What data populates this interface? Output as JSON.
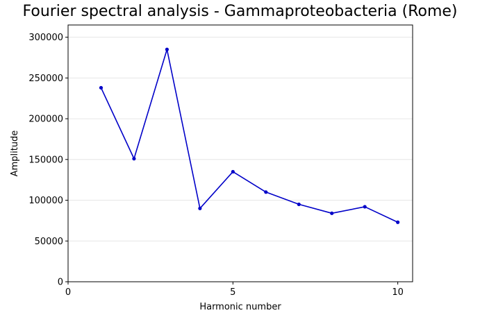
{
  "chart_data": {
    "type": "line",
    "title": "Fourier spectral analysis - Gammaproteobacteria (Rome)",
    "xlabel": "Harmonic number",
    "ylabel": "Amplitude",
    "xlim": [
      0,
      10.45
    ],
    "ylim": [
      0,
      315000
    ],
    "xticks": [
      0,
      5,
      10
    ],
    "yticks": [
      0,
      50000,
      100000,
      150000,
      200000,
      250000,
      300000
    ],
    "grid": "y-only",
    "series": [
      {
        "color": "#0000c8",
        "x": [
          1,
          2,
          3,
          4,
          5,
          6,
          7,
          8,
          9,
          10
        ],
        "y": [
          238000,
          151000,
          285000,
          90000,
          135000,
          110000,
          95000,
          84000,
          92000,
          73000
        ]
      }
    ]
  }
}
